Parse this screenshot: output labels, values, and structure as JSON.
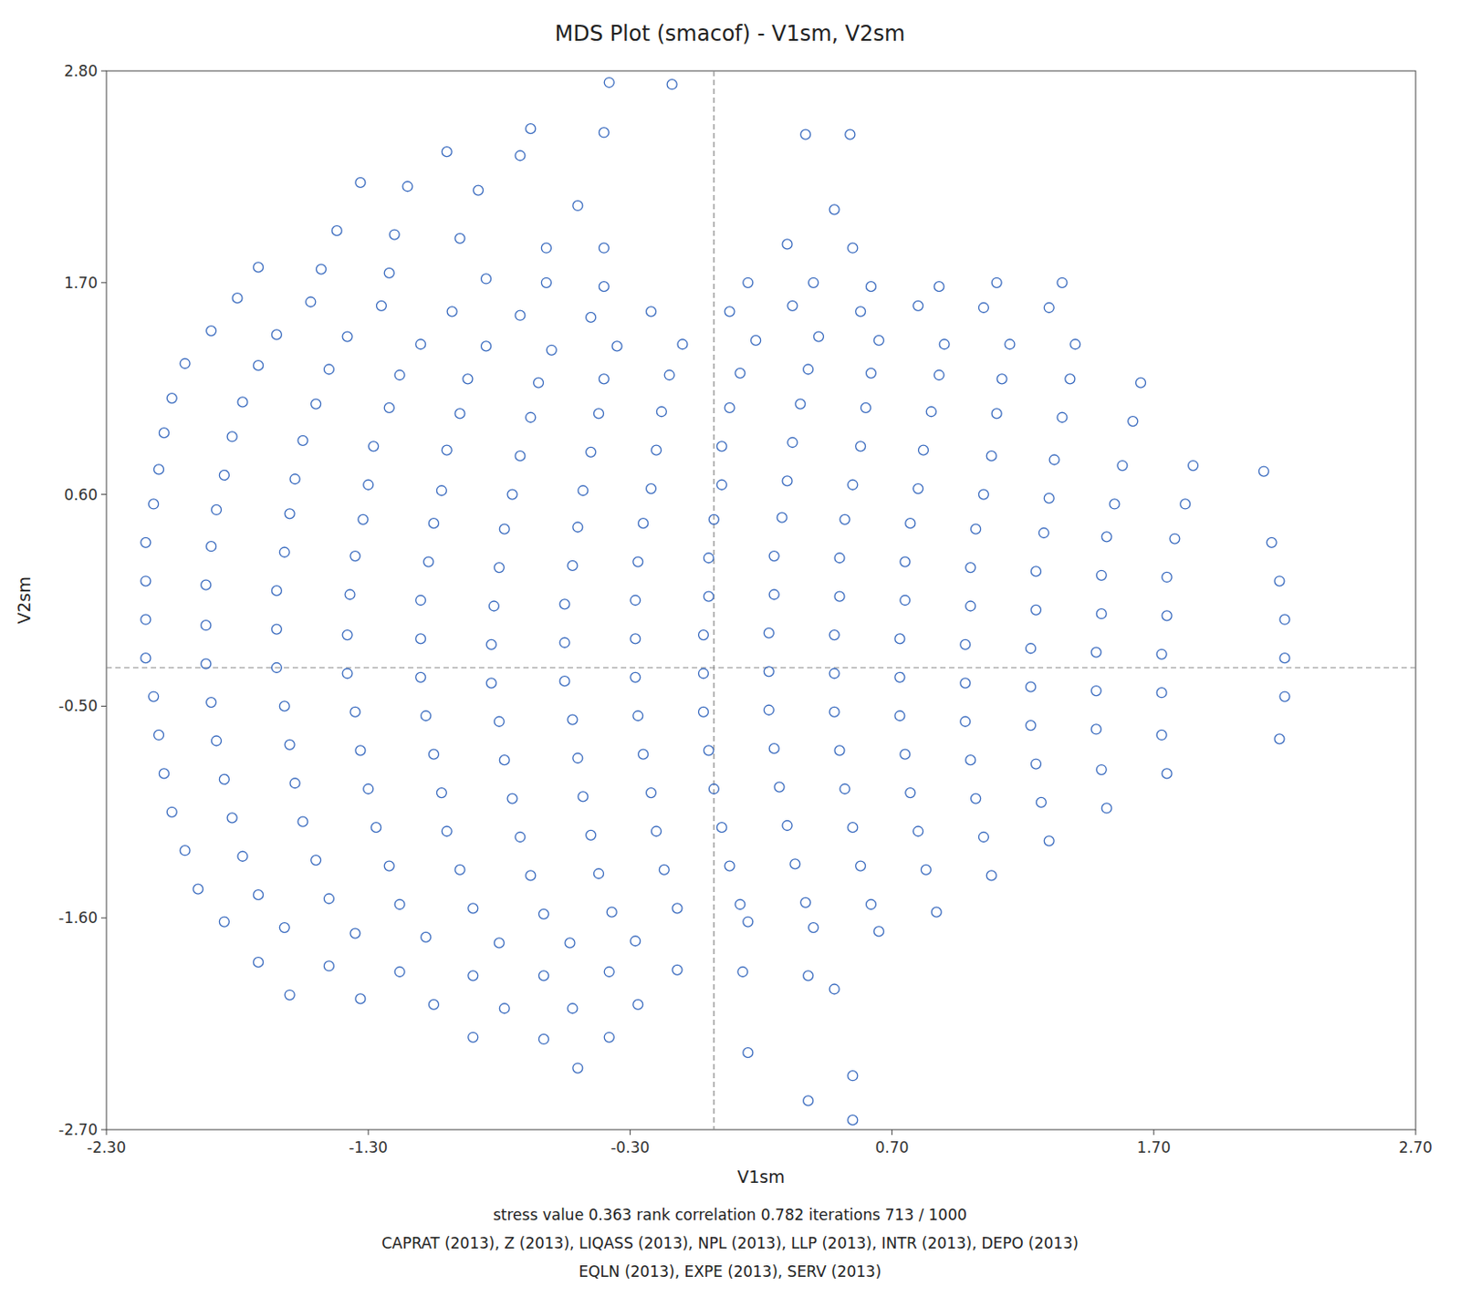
{
  "chart_data": {
    "type": "scatter",
    "title": "MDS Plot (smacof) - V1sm, V2sm",
    "x_label": "V1sm",
    "y_label": "V2sm",
    "color": "#3a6bbf",
    "grid": false,
    "xlim": [
      -2.3,
      2.7
    ],
    "ylim": [
      -2.7,
      2.8
    ],
    "xticks": [
      {
        "value": -2.3,
        "label": "-2.30"
      },
      {
        "value": -1.3,
        "label": "-1.30"
      },
      {
        "value": -0.3,
        "label": "-0.30"
      },
      {
        "value": 0.7,
        "label": "0.70"
      },
      {
        "value": 1.7,
        "label": "1.70"
      },
      {
        "value": 2.7,
        "label": "2.70"
      }
    ],
    "yticks": [
      {
        "value": -2.7,
        "label": "-2.70"
      },
      {
        "value": -1.6,
        "label": "-1.60"
      },
      {
        "value": -0.5,
        "label": "-0.50"
      },
      {
        "value": 0.6,
        "label": "0.60"
      },
      {
        "value": 1.7,
        "label": "1.70"
      },
      {
        "value": 2.8,
        "label": "2.80"
      }
    ],
    "vline_x": 0.02,
    "hline_y": -0.3,
    "annotations": [
      "stress value  0.363  rank correlation  0.782  iterations  713  /  1000",
      "CAPRAT (2013), Z (2013), LIQASS (2013), NPL (2013), LLP (2013), INTR (2013), DEPO (2013)",
      "EQLN (2013), EXPE (2013), SERV (2013)"
    ],
    "x": [
      -0.38,
      -0.14,
      -0.68,
      -0.4,
      0.37,
      0.54,
      -1.0,
      -0.72,
      -1.33,
      -1.15,
      -0.88,
      -0.5,
      0.48,
      -1.42,
      -1.2,
      -0.95,
      -0.62,
      -0.4,
      0.3,
      0.55,
      -1.72,
      -1.48,
      -1.22,
      -0.85,
      -0.62,
      -0.4,
      0.15,
      0.4,
      0.62,
      0.88,
      1.1,
      1.35,
      -1.8,
      -1.52,
      -1.25,
      -0.98,
      -0.72,
      -0.45,
      -0.22,
      0.08,
      0.32,
      0.58,
      0.8,
      1.05,
      1.3,
      -1.9,
      -1.65,
      -1.38,
      -1.1,
      -0.85,
      -0.6,
      -0.35,
      -0.1,
      0.18,
      0.42,
      0.65,
      0.9,
      1.15,
      1.4,
      -2.0,
      -1.72,
      -1.45,
      -1.18,
      -0.92,
      -0.65,
      -0.4,
      -0.15,
      0.12,
      0.38,
      0.62,
      0.88,
      1.12,
      1.38,
      1.65,
      -2.05,
      -1.78,
      -1.5,
      -1.22,
      -0.95,
      -0.68,
      -0.42,
      -0.18,
      0.08,
      0.35,
      0.6,
      0.85,
      1.1,
      1.35,
      1.62,
      -2.08,
      -1.82,
      -1.55,
      -1.28,
      -1.0,
      -0.72,
      -0.45,
      -0.2,
      0.05,
      0.32,
      0.58,
      0.82,
      1.08,
      1.32,
      1.58,
      1.85,
      2.12,
      -2.1,
      -1.85,
      -1.58,
      -1.3,
      -1.02,
      -0.75,
      -0.48,
      -0.22,
      0.05,
      0.3,
      0.55,
      0.8,
      1.05,
      1.3,
      1.55,
      1.82,
      -2.12,
      -1.88,
      -1.6,
      -1.32,
      -1.05,
      -0.78,
      -0.5,
      -0.25,
      0.02,
      0.28,
      0.52,
      0.77,
      1.02,
      1.28,
      1.52,
      1.78,
      2.15,
      -2.15,
      -1.9,
      -1.62,
      -1.35,
      -1.07,
      -0.8,
      -0.52,
      -0.27,
      0.0,
      0.25,
      0.5,
      0.75,
      1.0,
      1.25,
      1.5,
      1.75,
      2.18,
      -2.15,
      -1.92,
      -1.65,
      -1.37,
      -1.1,
      -0.82,
      -0.55,
      -0.28,
      0.0,
      0.25,
      0.5,
      0.75,
      1.0,
      1.25,
      1.5,
      1.75,
      2.2,
      -2.15,
      -1.92,
      -1.65,
      -1.38,
      -1.1,
      -0.83,
      -0.55,
      -0.28,
      -0.02,
      0.23,
      0.48,
      0.73,
      0.98,
      1.23,
      1.48,
      1.73,
      2.2,
      -2.15,
      -1.92,
      -1.65,
      -1.38,
      -1.1,
      -0.83,
      -0.55,
      -0.28,
      -0.02,
      0.23,
      0.48,
      0.73,
      0.98,
      1.23,
      1.48,
      1.73,
      2.2,
      -2.12,
      -1.9,
      -1.62,
      -1.35,
      -1.08,
      -0.8,
      -0.52,
      -0.27,
      -0.02,
      0.23,
      0.48,
      0.73,
      0.98,
      1.23,
      1.48,
      1.73,
      2.18,
      -2.1,
      -1.88,
      -1.6,
      -1.33,
      -1.05,
      -0.78,
      -0.5,
      -0.25,
      0.0,
      0.25,
      0.5,
      0.75,
      1.0,
      1.25,
      1.5,
      1.75,
      -2.08,
      -1.85,
      -1.58,
      -1.3,
      -1.02,
      -0.75,
      -0.48,
      -0.22,
      0.02,
      0.27,
      0.52,
      0.77,
      1.02,
      1.27,
      1.52,
      -2.05,
      -1.82,
      -1.55,
      -1.27,
      -1.0,
      -0.72,
      -0.45,
      -0.2,
      0.05,
      0.3,
      0.55,
      0.8,
      1.05,
      1.3,
      -2.0,
      -1.78,
      -1.5,
      -1.22,
      -0.95,
      -0.68,
      -0.42,
      -0.17,
      0.08,
      0.33,
      0.58,
      0.83,
      1.08,
      -1.95,
      -1.72,
      -1.45,
      -1.18,
      -0.9,
      -0.63,
      -0.37,
      -0.12,
      0.12,
      0.37,
      0.62,
      0.87,
      -1.85,
      -1.62,
      -1.35,
      -1.08,
      -0.8,
      -0.53,
      -0.28,
      0.15,
      0.4,
      0.65,
      -1.72,
      -1.45,
      -1.18,
      -0.9,
      -0.63,
      -0.38,
      -0.12,
      0.13,
      0.38,
      -1.6,
      -1.33,
      -1.05,
      -0.78,
      -0.52,
      -0.27,
      0.48,
      -0.9,
      -0.63,
      -0.38,
      0.15,
      -0.5,
      0.55,
      0.38,
      0.55
    ],
    "values": [
      2.74,
      2.73,
      2.5,
      2.48,
      2.47,
      2.47,
      2.38,
      2.36,
      2.22,
      2.2,
      2.18,
      2.1,
      2.08,
      1.97,
      1.95,
      1.93,
      1.88,
      1.88,
      1.9,
      1.88,
      1.78,
      1.77,
      1.75,
      1.72,
      1.7,
      1.68,
      1.7,
      1.7,
      1.68,
      1.68,
      1.7,
      1.7,
      1.62,
      1.6,
      1.58,
      1.55,
      1.53,
      1.52,
      1.55,
      1.55,
      1.58,
      1.55,
      1.58,
      1.57,
      1.57,
      1.45,
      1.43,
      1.42,
      1.38,
      1.37,
      1.35,
      1.37,
      1.38,
      1.4,
      1.42,
      1.4,
      1.38,
      1.38,
      1.38,
      1.28,
      1.27,
      1.25,
      1.22,
      1.2,
      1.18,
      1.2,
      1.22,
      1.23,
      1.25,
      1.23,
      1.22,
      1.2,
      1.2,
      1.18,
      1.1,
      1.08,
      1.07,
      1.05,
      1.02,
      1.0,
      1.02,
      1.03,
      1.05,
      1.07,
      1.05,
      1.03,
      1.02,
      1.0,
      0.98,
      0.92,
      0.9,
      0.88,
      0.85,
      0.83,
      0.8,
      0.82,
      0.83,
      0.85,
      0.87,
      0.85,
      0.83,
      0.8,
      0.78,
      0.75,
      0.75,
      0.72,
      0.73,
      0.7,
      0.68,
      0.65,
      0.62,
      0.6,
      0.62,
      0.63,
      0.65,
      0.67,
      0.65,
      0.63,
      0.6,
      0.58,
      0.55,
      0.55,
      0.55,
      0.52,
      0.5,
      0.47,
      0.45,
      0.42,
      0.43,
      0.45,
      0.47,
      0.48,
      0.47,
      0.45,
      0.42,
      0.4,
      0.38,
      0.37,
      0.35,
      0.35,
      0.33,
      0.3,
      0.28,
      0.25,
      0.22,
      0.23,
      0.25,
      0.27,
      0.28,
      0.27,
      0.25,
      0.22,
      0.2,
      0.18,
      0.17,
      0.15,
      0.15,
      0.13,
      0.1,
      0.08,
      0.05,
      0.02,
      0.03,
      0.05,
      0.07,
      0.08,
      0.07,
      0.05,
      0.02,
      0.0,
      -0.02,
      -0.03,
      -0.05,
      -0.05,
      -0.08,
      -0.1,
      -0.13,
      -0.15,
      -0.18,
      -0.17,
      -0.15,
      -0.13,
      -0.12,
      -0.13,
      -0.15,
      -0.18,
      -0.2,
      -0.22,
      -0.23,
      -0.25,
      -0.25,
      -0.28,
      -0.3,
      -0.33,
      -0.35,
      -0.38,
      -0.37,
      -0.35,
      -0.33,
      -0.32,
      -0.33,
      -0.35,
      -0.38,
      -0.4,
      -0.42,
      -0.43,
      -0.45,
      -0.45,
      -0.48,
      -0.5,
      -0.53,
      -0.55,
      -0.58,
      -0.57,
      -0.55,
      -0.53,
      -0.52,
      -0.53,
      -0.55,
      -0.58,
      -0.6,
      -0.62,
      -0.65,
      -0.67,
      -0.65,
      -0.68,
      -0.7,
      -0.73,
      -0.75,
      -0.78,
      -0.77,
      -0.75,
      -0.73,
      -0.72,
      -0.73,
      -0.75,
      -0.78,
      -0.8,
      -0.83,
      -0.85,
      -0.85,
      -0.88,
      -0.9,
      -0.93,
      -0.95,
      -0.98,
      -0.97,
      -0.95,
      -0.93,
      -0.92,
      -0.93,
      -0.95,
      -0.98,
      -1.0,
      -1.03,
      -1.05,
      -1.08,
      -1.1,
      -1.13,
      -1.15,
      -1.18,
      -1.17,
      -1.15,
      -1.13,
      -1.12,
      -1.13,
      -1.15,
      -1.18,
      -1.2,
      -1.25,
      -1.28,
      -1.3,
      -1.33,
      -1.35,
      -1.38,
      -1.37,
      -1.35,
      -1.33,
      -1.32,
      -1.33,
      -1.35,
      -1.38,
      -1.45,
      -1.48,
      -1.5,
      -1.53,
      -1.55,
      -1.58,
      -1.57,
      -1.55,
      -1.53,
      -1.52,
      -1.53,
      -1.57,
      -1.62,
      -1.65,
      -1.68,
      -1.7,
      -1.73,
      -1.73,
      -1.72,
      -1.62,
      -1.65,
      -1.67,
      -1.83,
      -1.85,
      -1.88,
      -1.9,
      -1.9,
      -1.88,
      -1.87,
      -1.88,
      -1.9,
      -2.0,
      -2.02,
      -2.05,
      -2.07,
      -2.07,
      -2.05,
      -1.97,
      -2.22,
      -2.23,
      -2.22,
      -2.3,
      -2.38,
      -2.42,
      -2.55,
      -2.65
    ]
  }
}
